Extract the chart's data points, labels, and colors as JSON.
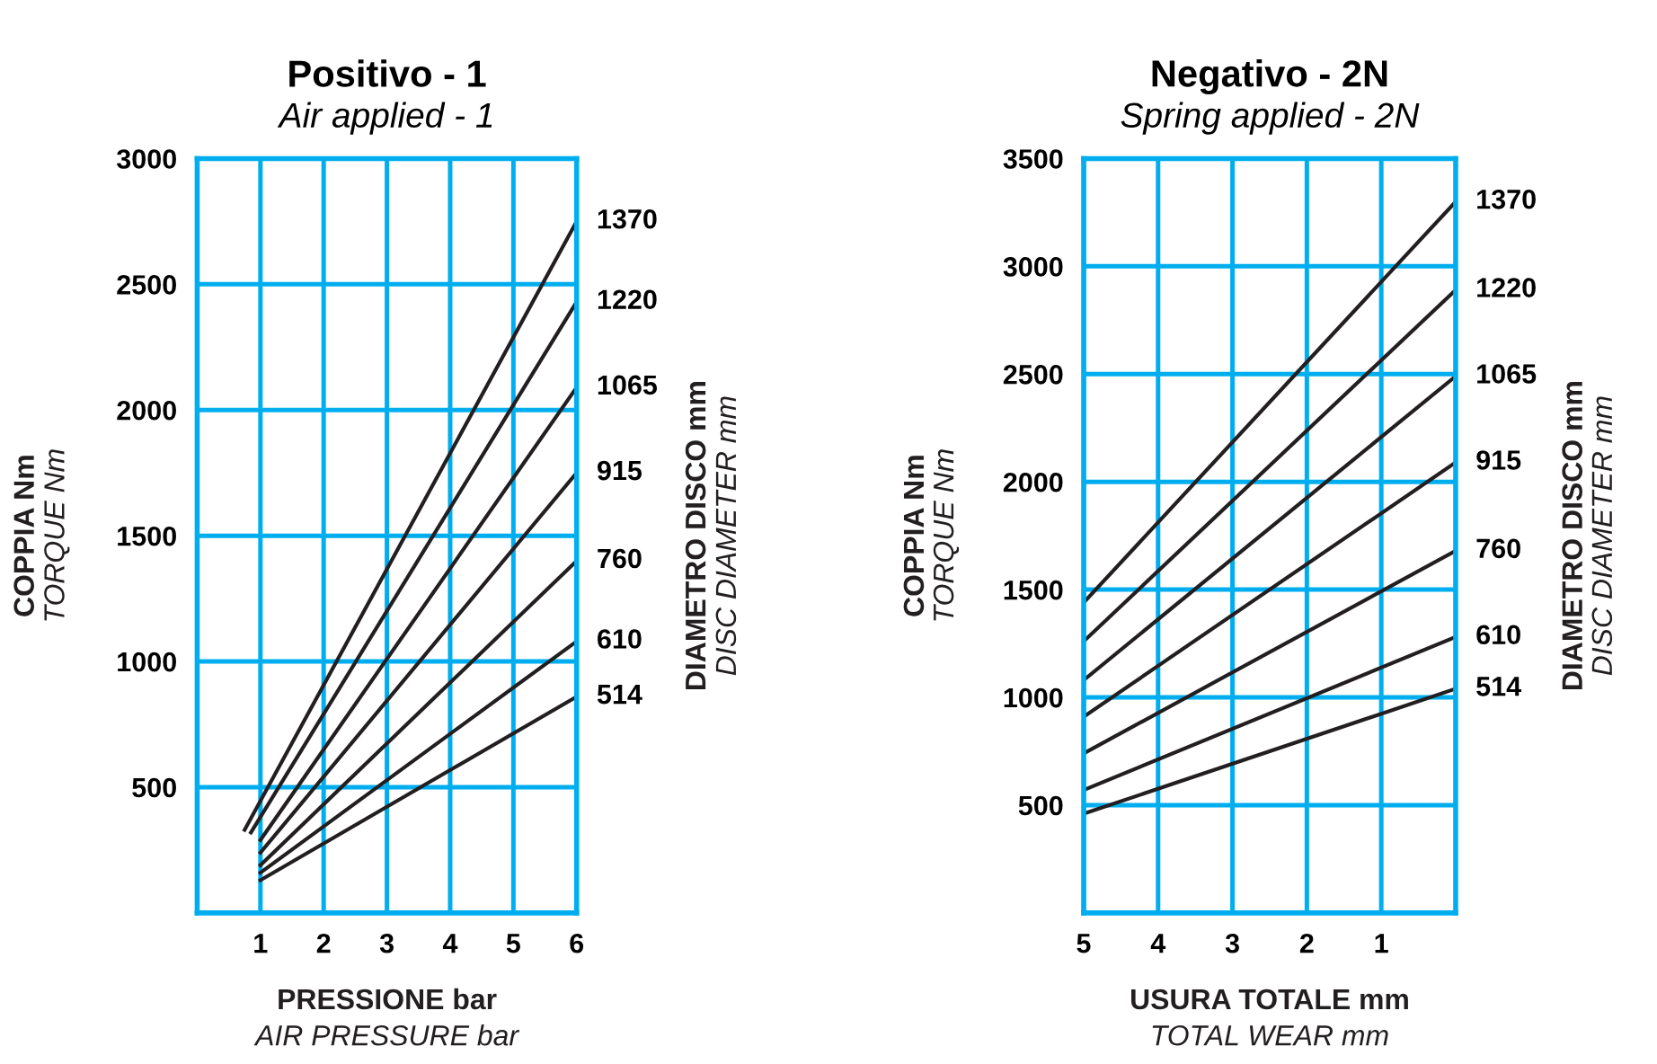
{
  "chart_data": [
    {
      "type": "line",
      "title": "Positivo - 1",
      "subtitle": "Air applied - 1",
      "xlabel": "PRESSIONE bar\nAIR PRESSURE bar",
      "ylabel": "COPPIA Nm\nTORQUE Nm",
      "y2label": "DIAMETRO DISCO mm\nDISC DIAMETER mm",
      "xlim": [
        0,
        6
      ],
      "xticks": [
        1,
        2,
        3,
        4,
        5,
        6
      ],
      "ylim": [
        0,
        3000
      ],
      "yticks": [
        500,
        1000,
        1500,
        2000,
        2500,
        3000
      ],
      "grid": true,
      "marker": "none",
      "line_style": "solid",
      "series": [
        {
          "name": "1370",
          "color": "#231f20",
          "x": [
            0.75,
            6
          ],
          "values": [
            330,
            2750
          ]
        },
        {
          "name": "1220",
          "color": "#231f20",
          "x": [
            0.85,
            6
          ],
          "values": [
            320,
            2430
          ]
        },
        {
          "name": "1065",
          "color": "#231f20",
          "x": [
            1,
            6
          ],
          "values": [
            290,
            2090
          ]
        },
        {
          "name": "915",
          "color": "#231f20",
          "x": [
            1,
            6
          ],
          "values": [
            240,
            1750
          ]
        },
        {
          "name": "760",
          "color": "#231f20",
          "x": [
            1,
            6
          ],
          "values": [
            190,
            1400
          ]
        },
        {
          "name": "610",
          "color": "#231f20",
          "x": [
            1,
            6
          ],
          "values": [
            160,
            1080
          ]
        },
        {
          "name": "514",
          "color": "#231f20",
          "x": [
            1,
            6
          ],
          "values": [
            130,
            860
          ]
        }
      ]
    },
    {
      "type": "line",
      "title": "Negativo - 2N",
      "subtitle": "Spring applied - 2N",
      "xlabel": "USURA TOTALE mm\nTOTAL WEAR mm",
      "ylabel": "COPPIA Nm\nTORQUE Nm",
      "y2label": "DIAMETRO DISCO mm\nDISC DIAMETER mm",
      "xlim": [
        5,
        0
      ],
      "xticks": [
        5,
        4,
        3,
        2,
        1
      ],
      "ylim": [
        0,
        3500
      ],
      "yticks": [
        500,
        1000,
        1500,
        2000,
        2500,
        3000,
        3500
      ],
      "grid": true,
      "marker": "none",
      "line_style": "solid",
      "series": [
        {
          "name": "1370",
          "color": "#231f20",
          "x": [
            5,
            0
          ],
          "values": [
            1440,
            3300
          ]
        },
        {
          "name": "1220",
          "color": "#231f20",
          "x": [
            5,
            0
          ],
          "values": [
            1260,
            2890
          ]
        },
        {
          "name": "1065",
          "color": "#231f20",
          "x": [
            5,
            0
          ],
          "values": [
            1080,
            2490
          ]
        },
        {
          "name": "915",
          "color": "#231f20",
          "x": [
            5,
            0
          ],
          "values": [
            910,
            2090
          ]
        },
        {
          "name": "760",
          "color": "#231f20",
          "x": [
            5,
            0
          ],
          "values": [
            740,
            1680
          ]
        },
        {
          "name": "610",
          "color": "#231f20",
          "x": [
            5,
            0
          ],
          "values": [
            570,
            1280
          ]
        },
        {
          "name": "514",
          "color": "#231f20",
          "x": [
            5,
            0
          ],
          "values": [
            460,
            1040
          ]
        }
      ]
    }
  ]
}
